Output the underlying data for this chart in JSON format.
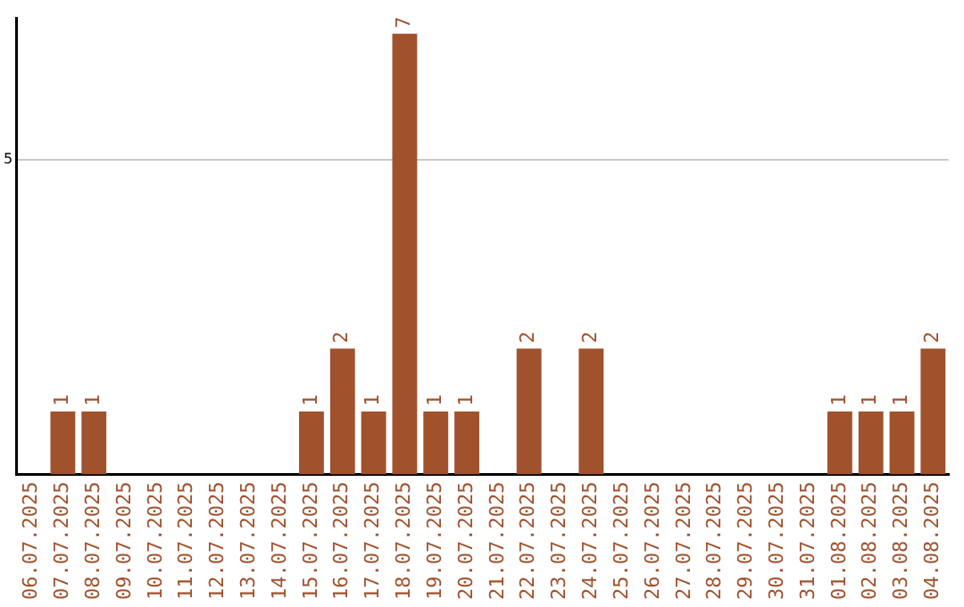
{
  "chart_data": {
    "type": "bar",
    "categories": [
      "06.07.2025",
      "07.07.2025",
      "08.07.2025",
      "09.07.2025",
      "10.07.2025",
      "11.07.2025",
      "12.07.2025",
      "13.07.2025",
      "14.07.2025",
      "15.07.2025",
      "16.07.2025",
      "17.07.2025",
      "18.07.2025",
      "19.07.2025",
      "20.07.2025",
      "21.07.2025",
      "22.07.2025",
      "23.07.2025",
      "24.07.2025",
      "25.07.2025",
      "26.07.2025",
      "27.07.2025",
      "28.07.2025",
      "29.07.2025",
      "30.07.2025",
      "31.07.2025",
      "01.08.2025",
      "02.08.2025",
      "03.08.2025",
      "04.08.2025"
    ],
    "values": [
      0,
      1,
      1,
      0,
      0,
      0,
      0,
      0,
      0,
      1,
      2,
      1,
      7,
      1,
      1,
      0,
      2,
      0,
      2,
      0,
      0,
      0,
      0,
      0,
      0,
      0,
      1,
      1,
      1,
      2
    ],
    "value_labels": [
      null,
      "1",
      "1",
      null,
      null,
      null,
      null,
      null,
      null,
      "1",
      "2",
      "1",
      "7",
      "1",
      "1",
      null,
      "2",
      null,
      "2",
      null,
      null,
      null,
      null,
      null,
      null,
      null,
      "1",
      "1",
      "1",
      "2"
    ],
    "color": "#a0522d",
    "ylim": [
      0,
      7.25
    ],
    "yticks": [
      5
    ],
    "grid": "y",
    "legend": false
  }
}
